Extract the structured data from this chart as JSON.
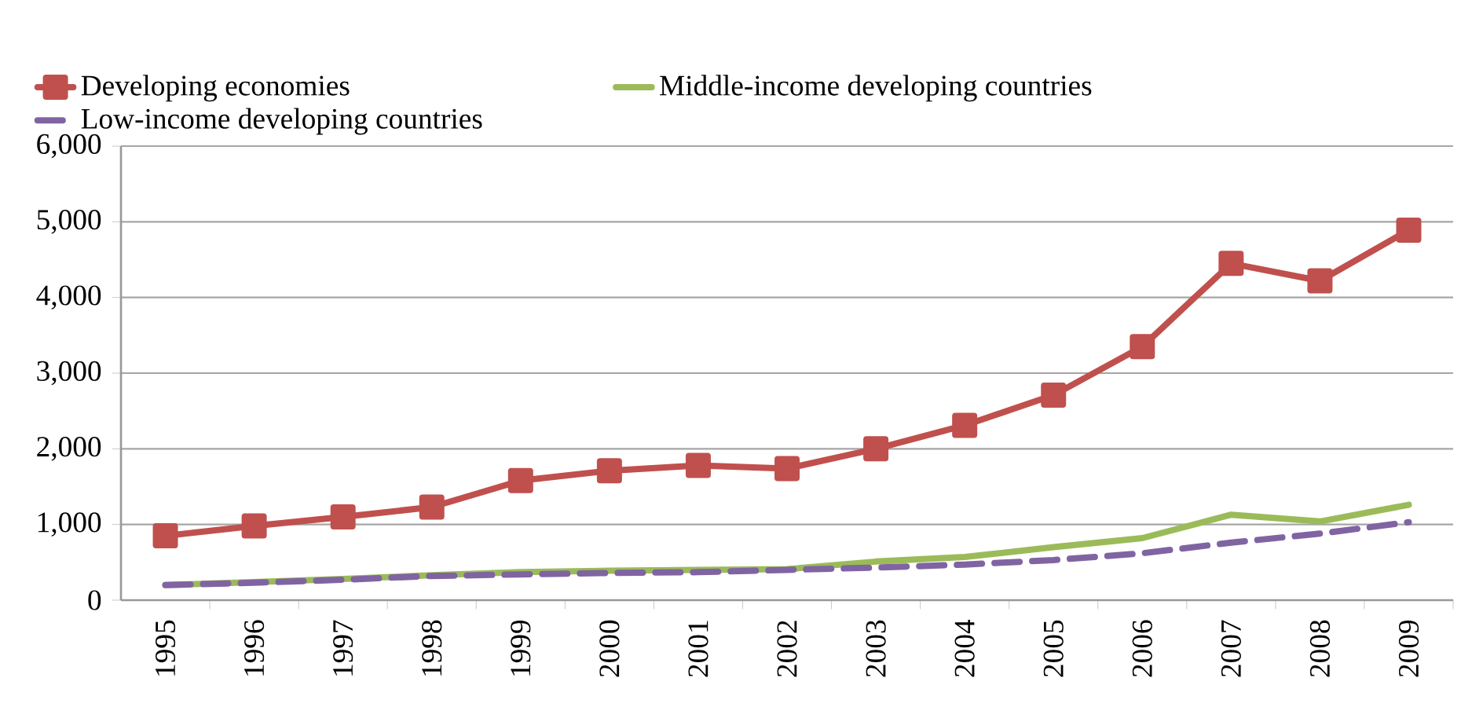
{
  "chart_data": {
    "type": "line",
    "categories": [
      "1995",
      "1996",
      "1997",
      "1998",
      "1999",
      "2000",
      "2001",
      "2002",
      "2003",
      "2004",
      "2005",
      "2006",
      "2007",
      "2008",
      "2009"
    ],
    "series": [
      {
        "name": "Developing economies",
        "color": "#c0504d",
        "marker": "square",
        "line_style": "solid",
        "values": [
          850,
          980,
          1100,
          1230,
          1580,
          1710,
          1780,
          1740,
          2000,
          2310,
          2710,
          3350,
          4450,
          4220,
          4890
        ]
      },
      {
        "name": "Middle-income developing countries",
        "color": "#9bbb59",
        "marker": "none",
        "line_style": "solid",
        "values": [
          200,
          240,
          280,
          330,
          370,
          390,
          400,
          410,
          510,
          570,
          700,
          820,
          1130,
          1040,
          1260
        ]
      },
      {
        "name": "Low-income developing countries",
        "color": "#8064a2",
        "marker": "none",
        "line_style": "dashed",
        "values": [
          200,
          230,
          270,
          320,
          340,
          360,
          370,
          400,
          430,
          470,
          530,
          620,
          760,
          880,
          1030
        ]
      }
    ],
    "ylim": [
      0,
      6000
    ],
    "yticks": [
      {
        "value": 0,
        "label": "0"
      },
      {
        "value": 1000,
        "label": "1,000"
      },
      {
        "value": 2000,
        "label": "2,000"
      },
      {
        "value": 3000,
        "label": "3,000"
      },
      {
        "value": 4000,
        "label": "4,000"
      },
      {
        "value": 5000,
        "label": "5,000"
      },
      {
        "value": 6000,
        "label": "6,000"
      }
    ],
    "grid": "y",
    "legend": "top"
  }
}
